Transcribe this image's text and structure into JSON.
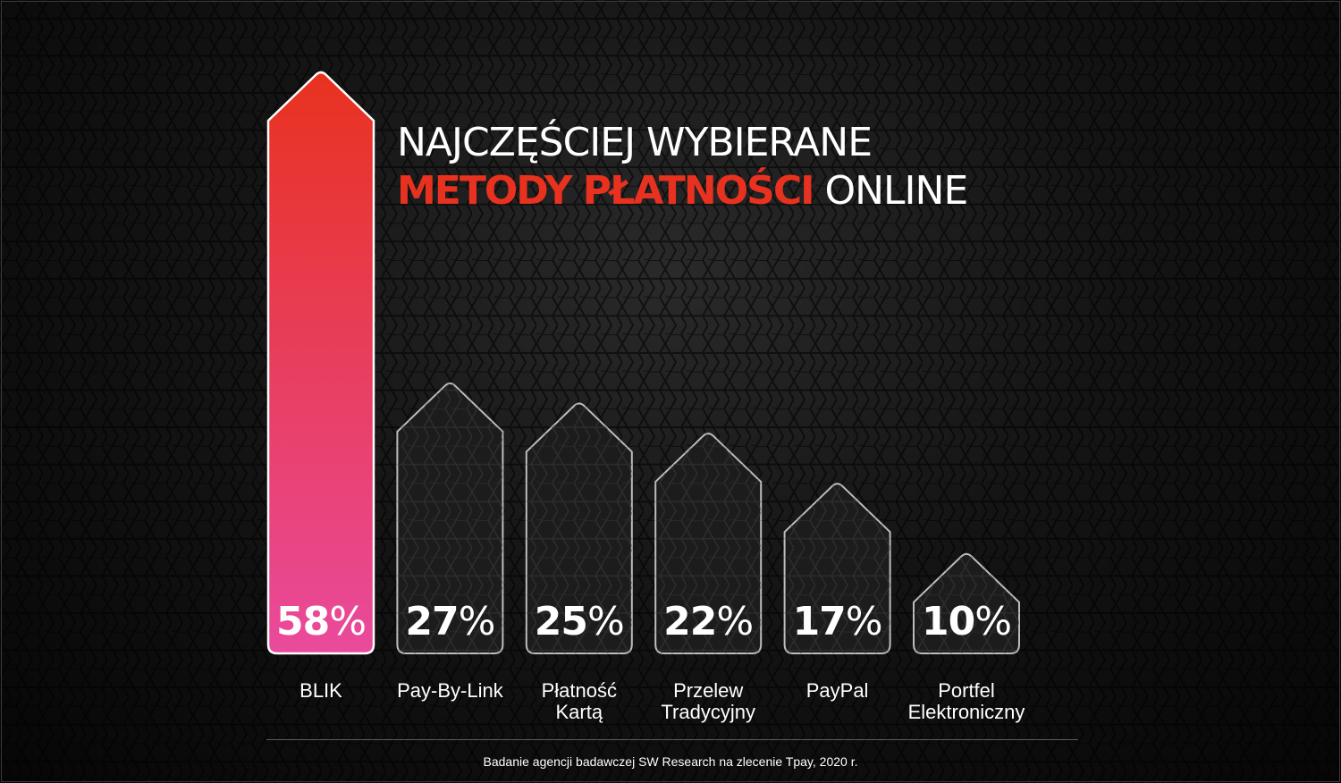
{
  "title": {
    "line1": "NAJCZĘŚCIEJ WYBIERANE",
    "line2_accent": "METODY PŁATNOŚCI",
    "line2_rest": "ONLINE"
  },
  "source_note": "Badanie agencji badawczej SW Research na zlecenie Tpay, 2020 r.",
  "colors": {
    "accent": "#e8321f",
    "highlight_top": "#e8321f",
    "highlight_bottom": "#e94a9c",
    "text": "#ffffff"
  },
  "chart_data": {
    "type": "bar",
    "categories": [
      "BLIK",
      "Pay-By-Link",
      "Płatność Kartą",
      "Przelew Tradycyjny",
      "PayPal",
      "Portfel Elektroniczny"
    ],
    "category_lines": [
      [
        "BLIK"
      ],
      [
        "Pay-By-Link"
      ],
      [
        "Płatność",
        "Kartą"
      ],
      [
        "Przelew",
        "Tradycyjny"
      ],
      [
        "PayPal"
      ],
      [
        "Portfel",
        "Elektroniczny"
      ]
    ],
    "values": [
      58,
      27,
      25,
      22,
      17,
      10
    ],
    "labels": [
      "58%",
      "27%",
      "25%",
      "22%",
      "17%",
      "10%"
    ],
    "unit": "%",
    "highlighted_index": 0,
    "title": "NAJCZĘŚCIEJ WYBIERANE METODY PŁATNOŚCI ONLINE",
    "xlabel": "",
    "ylabel": "",
    "ylim": [
      0,
      58
    ],
    "grid": false,
    "legend": "none"
  }
}
